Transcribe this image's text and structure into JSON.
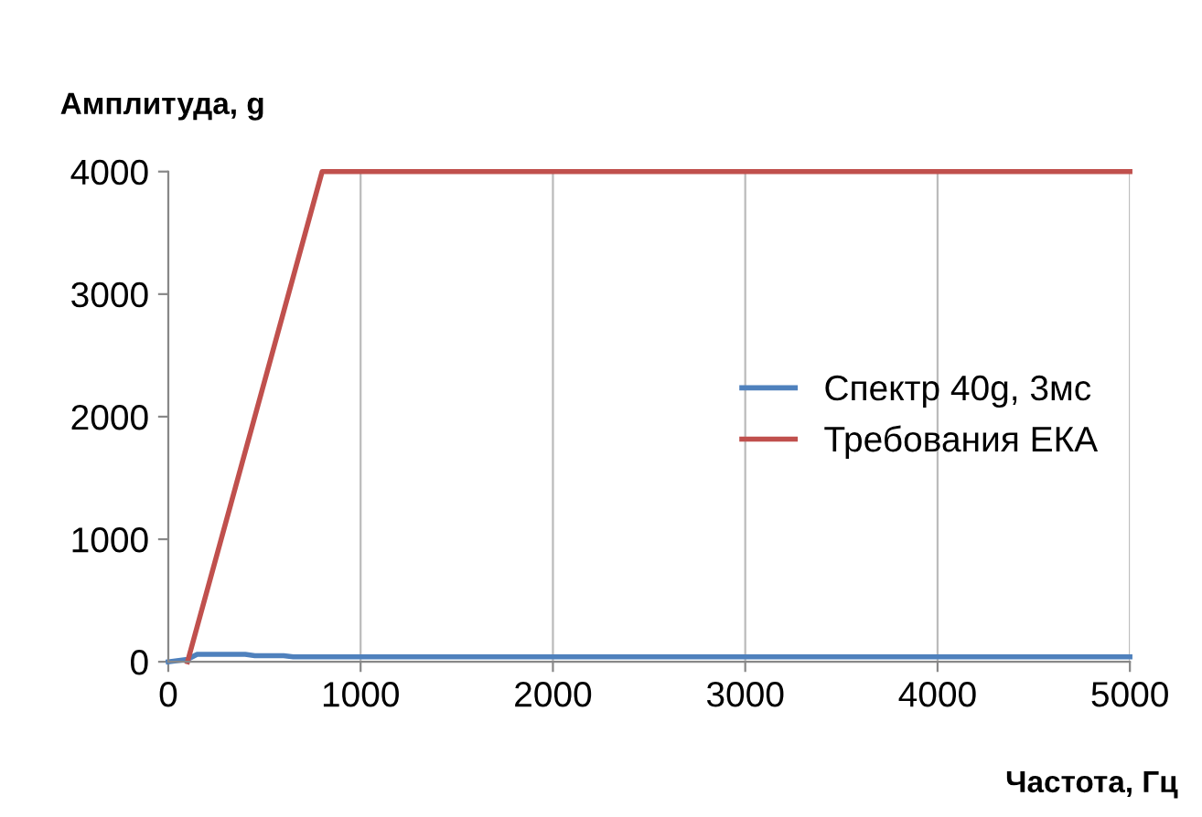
{
  "chart_data": {
    "type": "line",
    "ylabel": "Амплитуда, g",
    "xlabel": "Частота, Гц",
    "xlim": [
      0,
      5000
    ],
    "ylim": [
      0,
      4000
    ],
    "xticks": [
      0,
      1000,
      2000,
      3000,
      4000,
      5000
    ],
    "yticks": [
      0,
      1000,
      2000,
      3000,
      4000
    ],
    "grid": "x",
    "legend": "right",
    "marker": "none",
    "line_style": "solid",
    "series": [
      {
        "name": "Спектр 40g, 3мс",
        "color": "#4f81bd",
        "x": [
          0,
          100,
          150,
          400,
          450,
          600,
          650,
          5000
        ],
        "values": [
          0,
          20,
          60,
          60,
          50,
          50,
          40,
          40
        ]
      },
      {
        "name": "Требования ЕКА",
        "color": "#c0504d",
        "x": [
          100,
          800,
          5000
        ],
        "values": [
          0,
          4000,
          4000
        ]
      }
    ]
  }
}
